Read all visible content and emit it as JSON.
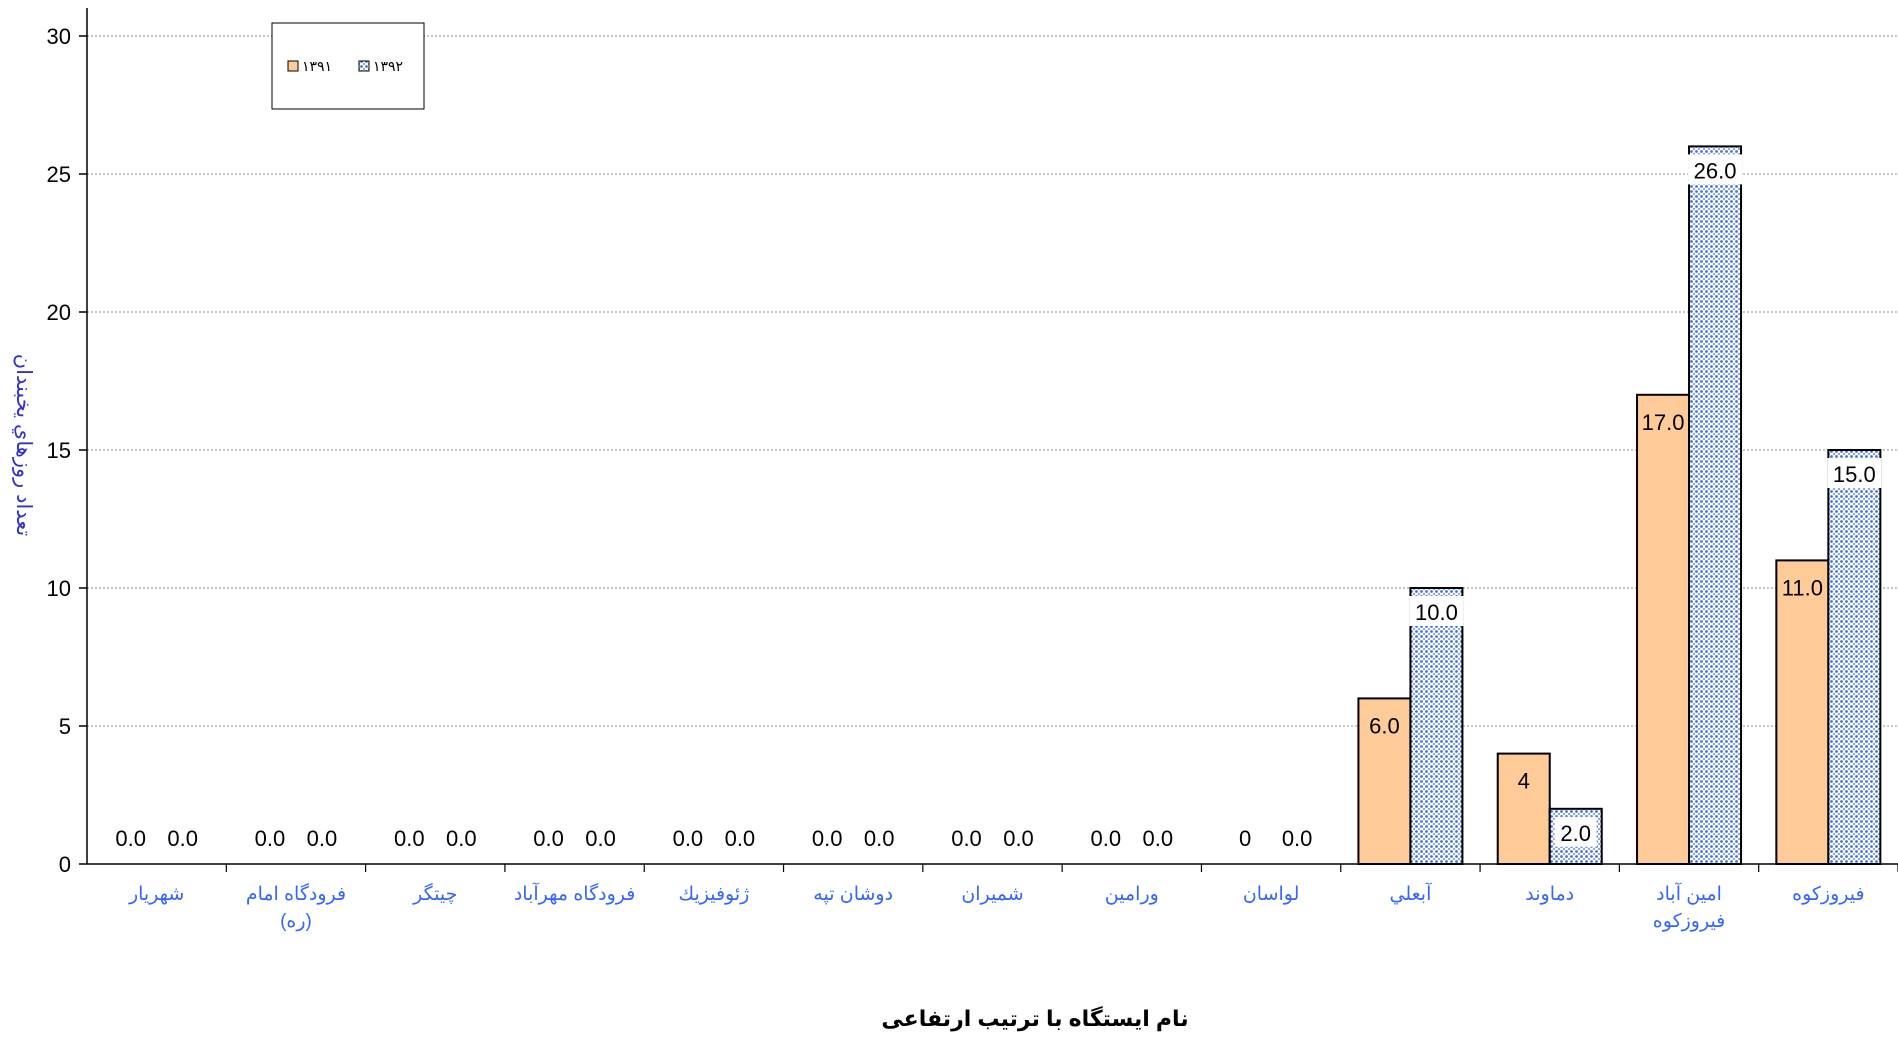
{
  "chart_data": {
    "type": "bar",
    "categories": [
      "شهريار",
      "فرودگاه امام (ره)",
      "چيتگر",
      "فرودگاه مهرآباد",
      "ژئوفيزيك",
      "دوشان تپه",
      "شميران",
      "ورامين",
      "لواسان",
      "آبعلي",
      "دماوند",
      "امين آباد فيروزكوه",
      "فيروزكوه"
    ],
    "category_lines": [
      [
        "شهريار"
      ],
      [
        "فرودگاه امام",
        "(ره)"
      ],
      [
        "چيتگر"
      ],
      [
        "فرودگاه مهرآباد"
      ],
      [
        "ژئوفيزيك"
      ],
      [
        "دوشان تپه"
      ],
      [
        "شميران"
      ],
      [
        "ورامين"
      ],
      [
        "لواسان"
      ],
      [
        "آبعلي"
      ],
      [
        "دماوند"
      ],
      [
        "امين آباد",
        "فيروزكوه"
      ],
      [
        "فيروزكوه"
      ]
    ],
    "series": [
      {
        "name": "۱۳۹۱",
        "values": [
          0,
          0,
          0,
          0,
          0,
          0,
          0,
          0,
          0,
          6,
          4,
          17,
          11
        ],
        "labels": [
          "0.0",
          "0.0",
          "0.0",
          "0.0",
          "0.0",
          "0.0",
          "0.0",
          "0.0",
          "0",
          "6.0",
          "4",
          "17.0",
          "11.0"
        ],
        "color": "#FFCC99",
        "pattern": "solid"
      },
      {
        "name": "۱۳۹۲",
        "values": [
          0,
          0,
          0,
          0,
          0,
          0,
          0,
          0,
          0,
          10,
          2,
          26,
          15
        ],
        "labels": [
          "0.0",
          "0.0",
          "0.0",
          "0.0",
          "0.0",
          "0.0",
          "0.0",
          "0.0",
          "0.0",
          "10.0",
          "2.0",
          "26.0",
          "15.0"
        ],
        "color": "#6A8FE8",
        "pattern": "dotted"
      }
    ],
    "xlabel": "نام ايستگاه با ترتيب ارتفاعی",
    "ylabel": "تعداد روزهاي يخبندان",
    "ylim": [
      0,
      30
    ],
    "yticks": [
      "0",
      "5",
      "10",
      "15",
      "20",
      "25",
      "30"
    ],
    "grid": true,
    "legend_position": "top-left",
    "colors": {
      "axis": "#000000",
      "grid": "#808080",
      "category_text": "#3366FF",
      "ylabel_text": "#3333CC"
    }
  }
}
